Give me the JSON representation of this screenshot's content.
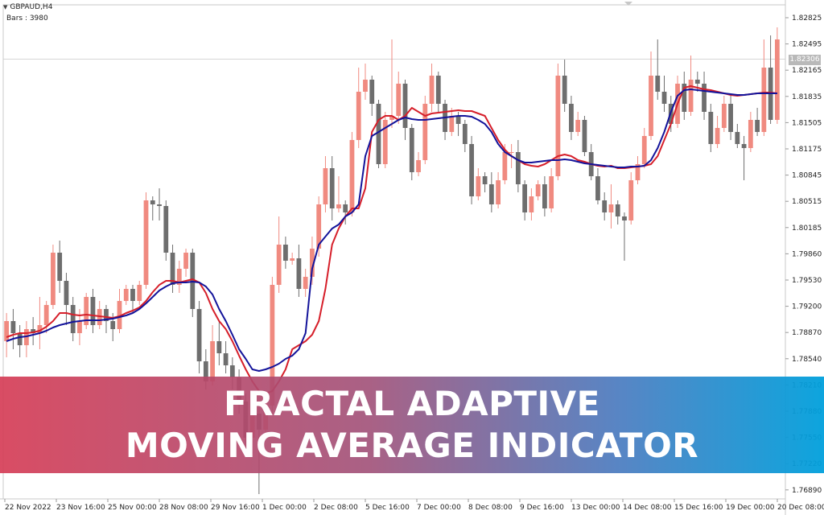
{
  "window": {
    "symbol_label": "GBPAUD,H4",
    "bars_label": "Bars : 3980"
  },
  "banner": {
    "line1": "FRACTAL ADAPTIVE",
    "line2": "MOVING AVERAGE INDICATOR"
  },
  "current_price": "1.82306",
  "colors": {
    "bull": "#f08a80",
    "bear": "#6e6e6e",
    "ma_fast": "#d61f2a",
    "ma_slow": "#13139a",
    "background": "#ffffff",
    "axis": "#c8c8c8"
  },
  "chart_data": {
    "type": "candlestick",
    "y_ticks": [
      "1.82825",
      "1.82495",
      "1.82165",
      "1.81835",
      "1.81505",
      "1.81175",
      "1.80845",
      "1.80515",
      "1.80185",
      "1.79860",
      "1.79530",
      "1.79200",
      "1.78870",
      "1.78540",
      "1.78210",
      "1.77880",
      "1.77550",
      "1.77220",
      "1.76890"
    ],
    "x_labels": [
      "22 Nov 2022",
      "23 Nov 16:00",
      "25 Nov 00:00",
      "28 Nov 08:00",
      "29 Nov 16:00",
      "1 Dec 00:00",
      "2 Dec 08:00",
      "5 Dec 16:00",
      "7 Dec 00:00",
      "8 Dec 08:00",
      "9 Dec 16:00",
      "13 Dec 00:00",
      "14 Dec 08:00",
      "15 Dec 16:00",
      "19 Dec 00:00",
      "20 Dec 08:00"
    ],
    "ylim": [
      1.7684,
      1.8298
    ],
    "candles": [
      [
        1.788,
        1.7905,
        1.786,
        1.7915
      ],
      [
        1.7905,
        1.789,
        1.787,
        1.792
      ],
      [
        1.789,
        1.7875,
        1.786,
        1.79
      ],
      [
        1.7875,
        1.7895,
        1.786,
        1.7905
      ],
      [
        1.7895,
        1.789,
        1.7875,
        1.791
      ],
      [
        1.789,
        1.79,
        1.787,
        1.7935
      ],
      [
        1.79,
        1.7925,
        1.789,
        1.793
      ],
      [
        1.7925,
        1.799,
        1.792,
        1.8
      ],
      [
        1.799,
        1.7955,
        1.794,
        1.8005
      ],
      [
        1.7955,
        1.7925,
        1.79,
        1.7965
      ],
      [
        1.7925,
        1.789,
        1.788,
        1.7935
      ],
      [
        1.789,
        1.7905,
        1.7875,
        1.792
      ],
      [
        1.79,
        1.7935,
        1.7895,
        1.794
      ],
      [
        1.7935,
        1.79,
        1.789,
        1.7945
      ],
      [
        1.79,
        1.792,
        1.7895,
        1.793
      ],
      [
        1.792,
        1.7905,
        1.789,
        1.7925
      ],
      [
        1.7905,
        1.7895,
        1.788,
        1.7915
      ],
      [
        1.7895,
        1.793,
        1.789,
        1.7945
      ],
      [
        1.793,
        1.7945,
        1.7925,
        1.795
      ],
      [
        1.7945,
        1.793,
        1.7915,
        1.795
      ],
      [
        1.793,
        1.795,
        1.7925,
        1.7955
      ],
      [
        1.795,
        1.8055,
        1.7945,
        1.8065
      ],
      [
        1.8055,
        1.805,
        1.803,
        1.806
      ],
      [
        1.805,
        1.8048,
        1.803,
        1.807
      ],
      [
        1.8048,
        1.799,
        1.798,
        1.8055
      ],
      [
        1.799,
        1.795,
        1.794,
        1.8
      ],
      [
        1.795,
        1.797,
        1.794,
        1.798
      ],
      [
        1.797,
        1.799,
        1.796,
        1.7995
      ],
      [
        1.799,
        1.792,
        1.791,
        1.7995
      ],
      [
        1.792,
        1.7855,
        1.784,
        1.793
      ],
      [
        1.7855,
        1.783,
        1.782,
        1.787
      ],
      [
        1.783,
        1.788,
        1.7825,
        1.79
      ],
      [
        1.788,
        1.7865,
        1.785,
        1.7905
      ],
      [
        1.7865,
        1.785,
        1.784,
        1.788
      ],
      [
        1.785,
        1.7835,
        1.782,
        1.786
      ],
      [
        1.7835,
        1.7805,
        1.779,
        1.7845
      ],
      [
        1.7805,
        1.776,
        1.774,
        1.7815
      ],
      [
        1.776,
        1.779,
        1.774,
        1.78
      ],
      [
        1.779,
        1.777,
        1.769,
        1.78
      ],
      [
        1.777,
        1.78,
        1.776,
        1.781
      ],
      [
        1.78,
        1.795,
        1.779,
        1.796
      ],
      [
        1.795,
        1.8,
        1.794,
        1.8035
      ],
      [
        1.8,
        1.798,
        1.797,
        1.801
      ],
      [
        1.798,
        1.7983,
        1.7975,
        1.799
      ],
      [
        1.7983,
        1.7945,
        1.7935,
        1.8
      ],
      [
        1.7945,
        1.796,
        1.7935,
        1.797
      ],
      [
        1.796,
        1.7995,
        1.795,
        1.801
      ],
      [
        1.7995,
        1.805,
        1.7985,
        1.806
      ],
      [
        1.805,
        1.8095,
        1.804,
        1.811
      ],
      [
        1.8095,
        1.8045,
        1.803,
        1.811
      ],
      [
        1.8045,
        1.805,
        1.804,
        1.8085
      ],
      [
        1.805,
        1.804,
        1.8025,
        1.8055
      ],
      [
        1.804,
        1.813,
        1.8035,
        1.814
      ],
      [
        1.813,
        1.819,
        1.812,
        1.822
      ],
      [
        1.819,
        1.8205,
        1.818,
        1.8225
      ],
      [
        1.8205,
        1.8175,
        1.816,
        1.821
      ],
      [
        1.8175,
        1.81,
        1.8095,
        1.818
      ],
      [
        1.81,
        1.8155,
        1.8095,
        1.8165
      ],
      [
        1.8155,
        1.816,
        1.8145,
        1.8255
      ],
      [
        1.816,
        1.82,
        1.815,
        1.8215
      ],
      [
        1.82,
        1.8145,
        1.813,
        1.8205
      ],
      [
        1.8145,
        1.809,
        1.808,
        1.815
      ],
      [
        1.809,
        1.8105,
        1.8085,
        1.8115
      ],
      [
        1.8105,
        1.8175,
        1.81,
        1.8185
      ],
      [
        1.8175,
        1.821,
        1.8165,
        1.8225
      ],
      [
        1.821,
        1.8175,
        1.8165,
        1.8215
      ],
      [
        1.8175,
        1.814,
        1.813,
        1.818
      ],
      [
        1.814,
        1.816,
        1.8135,
        1.817
      ],
      [
        1.816,
        1.815,
        1.8135,
        1.8165
      ],
      [
        1.815,
        1.8125,
        1.8115,
        1.8155
      ],
      [
        1.8125,
        1.806,
        1.805,
        1.8135
      ],
      [
        1.806,
        1.8085,
        1.8055,
        1.8095
      ],
      [
        1.8085,
        1.8075,
        1.8065,
        1.809
      ],
      [
        1.8075,
        1.805,
        1.804,
        1.809
      ],
      [
        1.805,
        1.808,
        1.8045,
        1.809
      ],
      [
        1.808,
        1.8115,
        1.8075,
        1.8125
      ],
      [
        1.8115,
        1.8115,
        1.8095,
        1.8125
      ],
      [
        1.8115,
        1.8075,
        1.8065,
        1.813
      ],
      [
        1.8075,
        1.804,
        1.803,
        1.808
      ],
      [
        1.804,
        1.806,
        1.803,
        1.807
      ],
      [
        1.806,
        1.8075,
        1.8055,
        1.808
      ],
      [
        1.8075,
        1.8045,
        1.8035,
        1.8085
      ],
      [
        1.8045,
        1.8085,
        1.804,
        1.8095
      ],
      [
        1.8085,
        1.821,
        1.808,
        1.8225
      ],
      [
        1.821,
        1.8175,
        1.8165,
        1.823
      ],
      [
        1.8175,
        1.814,
        1.813,
        1.8185
      ],
      [
        1.814,
        1.8155,
        1.8135,
        1.8165
      ],
      [
        1.8155,
        1.8115,
        1.811,
        1.816
      ],
      [
        1.8115,
        1.8085,
        1.808,
        1.8125
      ],
      [
        1.8085,
        1.8055,
        1.805,
        1.8095
      ],
      [
        1.8055,
        1.804,
        1.803,
        1.8065
      ],
      [
        1.804,
        1.805,
        1.802,
        1.8075
      ],
      [
        1.805,
        1.8035,
        1.8025,
        1.8055
      ],
      [
        1.8035,
        1.803,
        1.798,
        1.804
      ],
      [
        1.803,
        1.808,
        1.8025,
        1.809
      ],
      [
        1.808,
        1.81,
        1.8075,
        1.811
      ],
      [
        1.81,
        1.8135,
        1.8095,
        1.8145
      ],
      [
        1.8135,
        1.821,
        1.813,
        1.824
      ],
      [
        1.821,
        1.819,
        1.818,
        1.8255
      ],
      [
        1.819,
        1.8175,
        1.8165,
        1.821
      ],
      [
        1.8175,
        1.815,
        1.814,
        1.8185
      ],
      [
        1.815,
        1.82,
        1.8145,
        1.821
      ],
      [
        1.82,
        1.8165,
        1.8155,
        1.8215
      ],
      [
        1.8165,
        1.8205,
        1.816,
        1.8235
      ],
      [
        1.8205,
        1.82,
        1.819,
        1.8215
      ],
      [
        1.82,
        1.8165,
        1.8155,
        1.8215
      ],
      [
        1.8165,
        1.8125,
        1.8115,
        1.8175
      ],
      [
        1.8125,
        1.8145,
        1.812,
        1.816
      ],
      [
        1.8145,
        1.8175,
        1.814,
        1.8185
      ],
      [
        1.8175,
        1.814,
        1.813,
        1.8185
      ],
      [
        1.814,
        1.8125,
        1.812,
        1.815
      ],
      [
        1.8125,
        1.812,
        1.808,
        1.8135
      ],
      [
        1.812,
        1.8155,
        1.8115,
        1.8165
      ],
      [
        1.8155,
        1.814,
        1.8135,
        1.817
      ],
      [
        1.814,
        1.822,
        1.8135,
        1.8255
      ],
      [
        1.822,
        1.8155,
        1.815,
        1.826
      ],
      [
        1.8155,
        1.8255,
        1.815,
        1.827
      ]
    ],
    "series": [
      {
        "name": "",
        "color": "#d61f2a",
        "values": [
          1.7885,
          1.7888,
          1.789,
          1.789,
          1.7891,
          1.7893,
          1.7898,
          1.7905,
          1.7915,
          1.7915,
          1.7913,
          1.7912,
          1.7913,
          1.7912,
          1.7911,
          1.791,
          1.7909,
          1.7911,
          1.7915,
          1.7918,
          1.7922,
          1.793,
          1.7941,
          1.795,
          1.7955,
          1.7955,
          1.7953,
          1.7955,
          1.7957,
          1.7953,
          1.794,
          1.792,
          1.7905,
          1.7895,
          1.788,
          1.7862,
          1.7845,
          1.783,
          1.7818,
          1.7815,
          1.7818,
          1.783,
          1.7845,
          1.787,
          1.7875,
          1.788,
          1.7888,
          1.7905,
          1.7945,
          1.8,
          1.802,
          1.8035,
          1.8045,
          1.8045,
          1.807,
          1.814,
          1.8155,
          1.816,
          1.816,
          1.8155,
          1.816,
          1.817,
          1.8165,
          1.816,
          1.8163,
          1.8164,
          1.8165,
          1.8166,
          1.8167,
          1.8166,
          1.8166,
          1.8163,
          1.816,
          1.8145,
          1.813,
          1.8118,
          1.811,
          1.8105,
          1.81,
          1.8098,
          1.8097,
          1.81,
          1.8105,
          1.811,
          1.8112,
          1.811,
          1.8105,
          1.8103,
          1.81,
          1.8098,
          1.8097,
          1.8098,
          1.8095,
          1.8095,
          1.8096,
          1.8097,
          1.8098,
          1.81,
          1.811,
          1.813,
          1.815,
          1.8175,
          1.8195,
          1.8197,
          1.8195,
          1.8193,
          1.8192,
          1.819,
          1.8188,
          1.8186,
          1.8185,
          1.8186,
          1.8187,
          1.8188,
          1.8189,
          1.8189,
          1.8188
        ]
      },
      {
        "name": "",
        "color": "#13139a",
        "values": [
          1.788,
          1.7883,
          1.7885,
          1.7886,
          1.7888,
          1.789,
          1.7893,
          1.7897,
          1.79,
          1.7902,
          1.7904,
          1.7905,
          1.7906,
          1.7906,
          1.7906,
          1.7907,
          1.7908,
          1.791,
          1.7912,
          1.7915,
          1.792,
          1.7927,
          1.7935,
          1.7943,
          1.7948,
          1.7952,
          1.7953,
          1.7953,
          1.7954,
          1.7953,
          1.7948,
          1.7938,
          1.792,
          1.7905,
          1.7888,
          1.787,
          1.7858,
          1.7845,
          1.7843,
          1.7845,
          1.7848,
          1.7852,
          1.7858,
          1.7862,
          1.787,
          1.789,
          1.797,
          1.8,
          1.801,
          1.802,
          1.8025,
          1.8035,
          1.804,
          1.805,
          1.811,
          1.8135,
          1.814,
          1.8145,
          1.815,
          1.8155,
          1.8158,
          1.8156,
          1.8155,
          1.8155,
          1.8156,
          1.8157,
          1.8158,
          1.8159,
          1.816,
          1.816,
          1.8159,
          1.8155,
          1.815,
          1.814,
          1.8125,
          1.8115,
          1.811,
          1.8105,
          1.8102,
          1.8102,
          1.8103,
          1.8104,
          1.8105,
          1.8105,
          1.8106,
          1.8105,
          1.8103,
          1.8101,
          1.81,
          1.8099,
          1.8098,
          1.8097,
          1.8096,
          1.8096,
          1.8097,
          1.8097,
          1.8098,
          1.8105,
          1.812,
          1.814,
          1.8165,
          1.8185,
          1.8192,
          1.8193,
          1.8192,
          1.8191,
          1.819,
          1.8189,
          1.8188,
          1.8187,
          1.8186,
          1.8186,
          1.8187,
          1.8188,
          1.8188,
          1.8188,
          1.8188
        ]
      }
    ]
  }
}
